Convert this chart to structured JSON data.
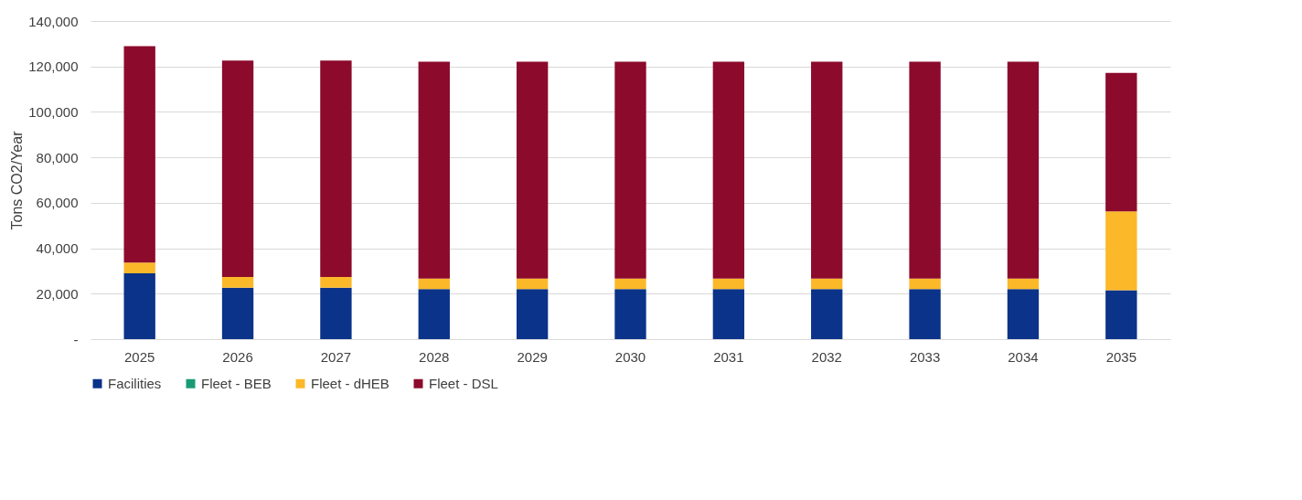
{
  "chart_data": {
    "type": "bar",
    "stacked": true,
    "ylabel": "Tons CO2/Year",
    "categories": [
      "2025",
      "2026",
      "2027",
      "2028",
      "2029",
      "2030",
      "2031",
      "2032",
      "2033",
      "2034",
      "2035"
    ],
    "series": [
      {
        "name": "Facilities",
        "color": "#0a3389",
        "values": [
          29000,
          22600,
          22600,
          22000,
          22000,
          22000,
          22000,
          22000,
          22000,
          22000,
          21500
        ]
      },
      {
        "name": "Fleet - BEB",
        "color": "#1a9a74",
        "values": [
          0,
          0,
          0,
          0,
          0,
          0,
          0,
          0,
          0,
          0,
          0
        ]
      },
      {
        "name": "Fleet - dHEB",
        "color": "#fbb829",
        "values": [
          4700,
          4800,
          4800,
          4700,
          4700,
          4700,
          4700,
          4700,
          4700,
          4700,
          34700
        ]
      },
      {
        "name": "Fleet - DSL",
        "color": "#8c0a2c",
        "values": [
          95200,
          95200,
          95200,
          95400,
          95400,
          95400,
          95400,
          95400,
          95400,
          95400,
          61000
        ]
      }
    ],
    "ylim": [
      0,
      140000
    ],
    "yticks": [
      {
        "value": 0,
        "label": "-"
      },
      {
        "value": 20000,
        "label": "20,000"
      },
      {
        "value": 40000,
        "label": "40,000"
      },
      {
        "value": 60000,
        "label": "60,000"
      },
      {
        "value": 80000,
        "label": "80,000"
      },
      {
        "value": 100000,
        "label": "100,000"
      },
      {
        "value": 120000,
        "label": "120,000"
      },
      {
        "value": 140000,
        "label": "140,000"
      }
    ],
    "grid": "y",
    "legend": "bottom"
  }
}
